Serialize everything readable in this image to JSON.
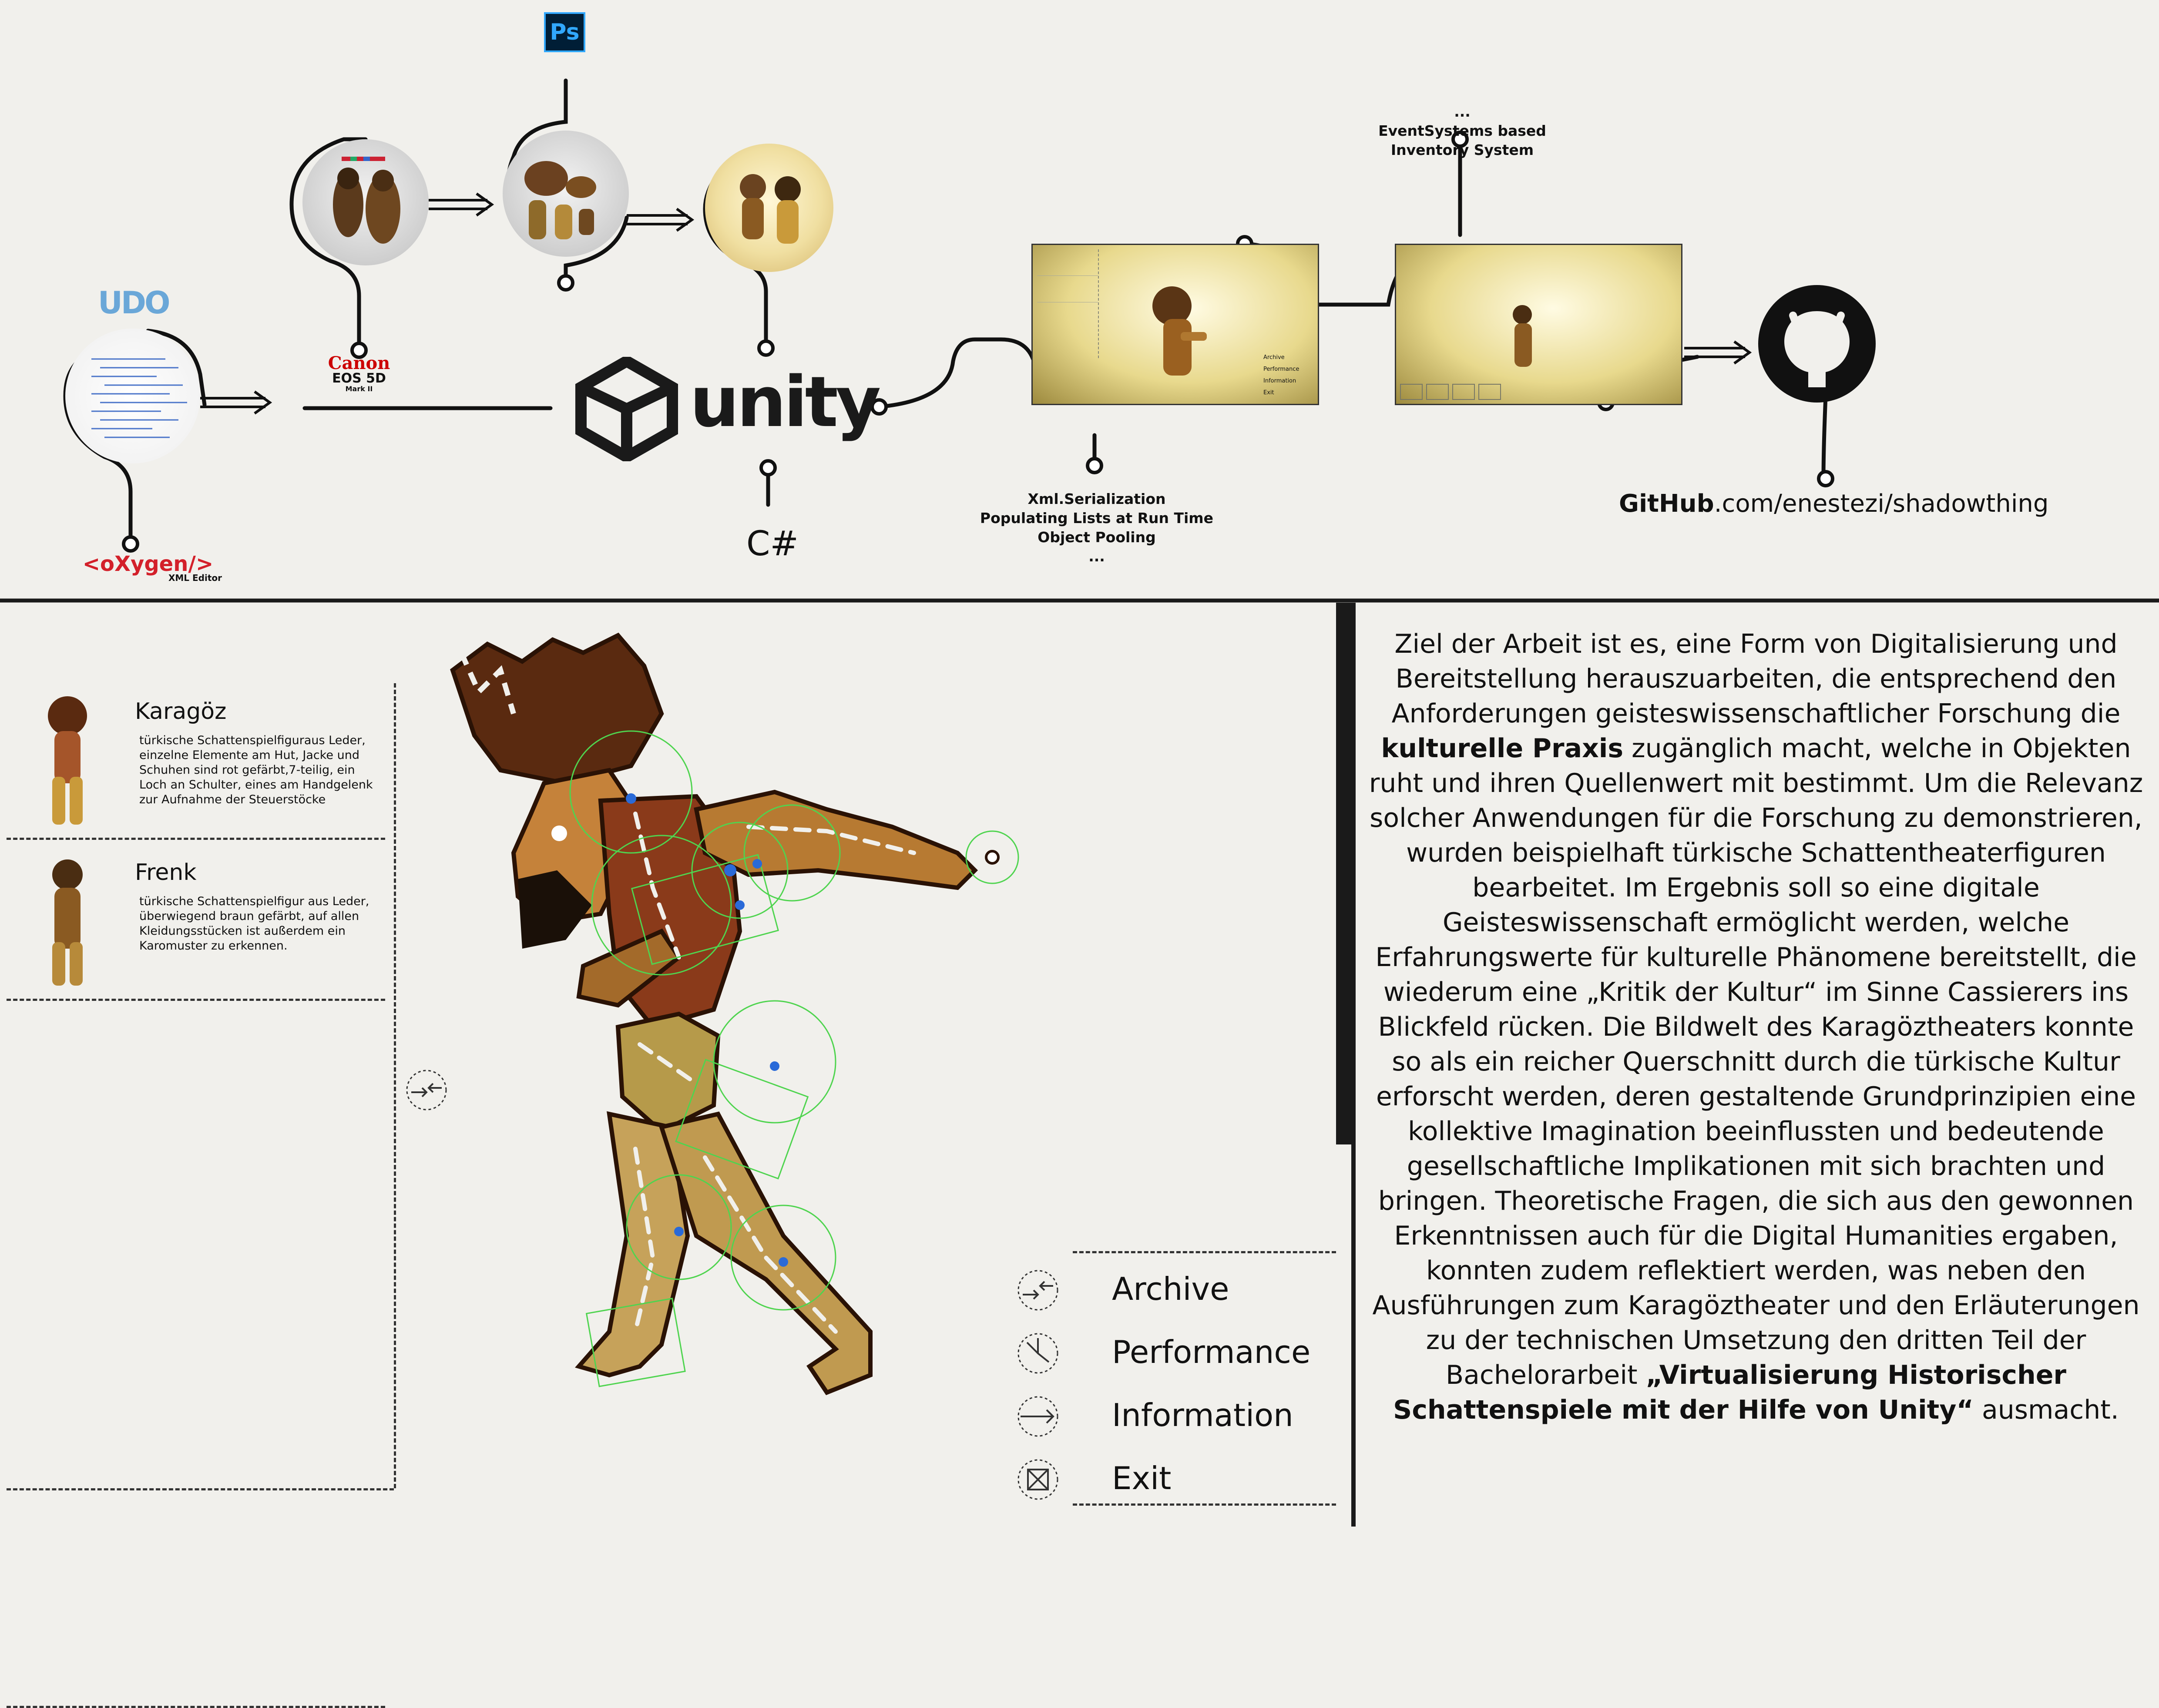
{
  "pipeline": {
    "ps_logo": "Ps",
    "canon": {
      "brand": "Canon",
      "model": "EOS 5D",
      "sub": "Mark II"
    },
    "oxygen": {
      "brand": "<oXygen/>",
      "sub": "XML Editor"
    },
    "unity_logo": "unity",
    "csharp": "C#",
    "udo_logo": "UDO",
    "inventory_note": [
      "...",
      "EventSystems based",
      "Inventory System"
    ],
    "features_note": [
      "Xml.Serialization",
      "Populating Lists at Run Time",
      "Object Pooling",
      "..."
    ],
    "github": {
      "brand": "GitHub",
      "path": ".com/enestezi/shadowthing"
    },
    "menu_mini": [
      "Archive",
      "Performance",
      "Information",
      "Exit"
    ]
  },
  "sidebar": {
    "cards": [
      {
        "name": "Karagöz",
        "desc": "türkische Schattenspielfiguraus Leder, einzelne Elemente am Hut, Jacke und Schuhen sind rot gefärbt,7-teilig, ein Loch an Schulter, eines am Handgelenk zur Aufnahme der Steuerstöcke"
      },
      {
        "name": "Frenk",
        "desc": "türkische Schattenspielfigur aus Leder, überwiegend braun gefärbt, auf allen Kleidungsstücken ist außerdem ein Karomuster zu erkennen."
      }
    ]
  },
  "menu": {
    "items": [
      {
        "label": "Archive",
        "icon": "archive-arrows-icon"
      },
      {
        "label": "Performance",
        "icon": "performance-clock-icon"
      },
      {
        "label": "Information",
        "icon": "information-arrow-icon"
      },
      {
        "label": "Exit",
        "icon": "exit-cross-icon"
      }
    ]
  },
  "description": {
    "p1": "Ziel der Arbeit ist es, eine Form von Digitalisierung und Bereitstellung herauszuarbeiten, die entsprechend den Anforderungen geisteswissenschaftlicher Forschung die",
    "b1": "kulturelle Praxis",
    "p2": " zugänglich macht, welche in Objekten ruht und ihren Quellenwert mit bestimmt. Um die Relevanz solcher Anwendungen für die Forschung zu demonstrieren, wurden beispielhaft türkische Schattentheaterfiguren bearbeitet. Im Ergebnis soll so eine digitale Geisteswissenschaft ermöglicht werden, welche Erfahrungswerte für kulturelle Phänomene bereitstellt, die wiederum eine „Kritik der Kultur“ im Sinne Cassierers ins Blickfeld rücken. Die Bildwelt des Karagöztheaters konnte so als ein reicher Querschnitt durch die türkische Kultur erforscht werden, deren gestaltende Grundprinzipien eine kollektive Imagination beeinflussten und bedeutende gesellschaftliche Implikationen mit sich brachten und bringen. Theoretische Fragen, die sich aus den gewonnen Erkenntnissen auch für die Digital Humanities ergaben, konnten zudem reflektiert werden, was neben den Ausführungen zum Karagöztheater und den Erläuterungen zu der technischen Umsetzung den dritten Teil der Bachelorarbeit ",
    "b2": "„Virtualisierung Historischer Schattenspiele mit der Hilfe von Unity“",
    "p3": " ausmacht."
  },
  "colors": {
    "divider": "#1a1a1a",
    "oxygen_red": "#d3202a",
    "ps_blue": "#001e36",
    "ps_text": "#31a8ff",
    "canon_red": "#cc0000",
    "figure_brown": "#8a4a1e",
    "figure_tan": "#caa04a",
    "bone_green": "#4fd44f",
    "joint_blue": "#2a6ad8"
  }
}
